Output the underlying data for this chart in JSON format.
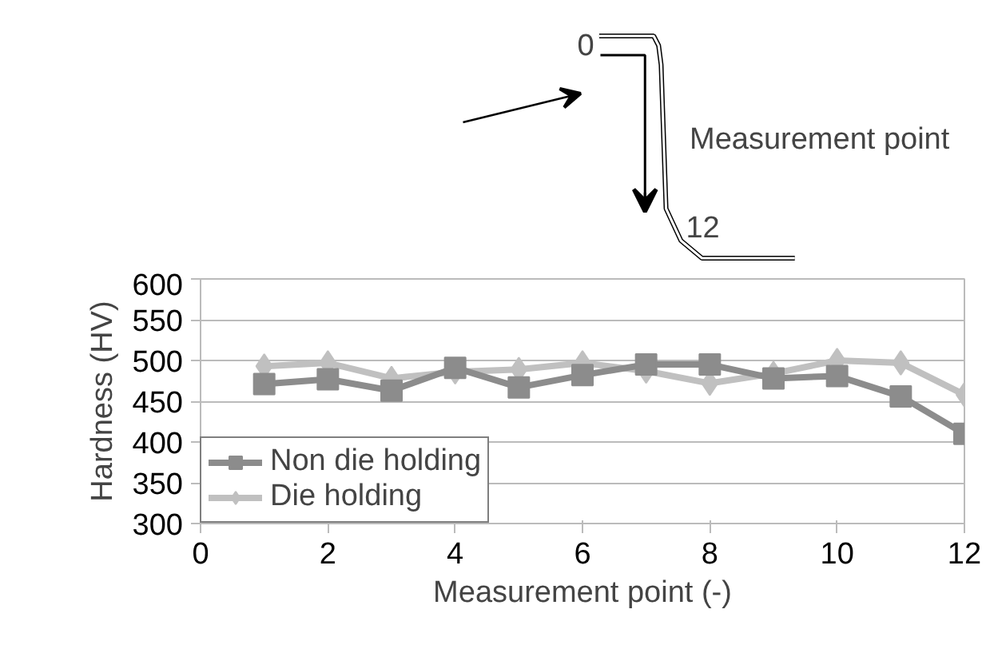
{
  "chart_data": {
    "type": "line",
    "xlabel": "Measurement point (-)",
    "ylabel": "Hardness (HV)",
    "x": [
      1,
      2,
      3,
      4,
      5,
      6,
      7,
      8,
      9,
      10,
      11,
      12
    ],
    "series": [
      {
        "name": "Non die holding",
        "color": "#8c8c8c",
        "marker": "square",
        "values": [
          471,
          477,
          463,
          491,
          467,
          482,
          495,
          495,
          478,
          481,
          456,
          410
        ]
      },
      {
        "name": "Die holding",
        "color": "#c0c0c0",
        "marker": "diamond",
        "values": [
          493,
          497,
          478,
          486,
          489,
          497,
          487,
          472,
          484,
          500,
          497,
          458
        ]
      }
    ],
    "xlim": [
      0,
      12
    ],
    "xticks": [
      0,
      2,
      4,
      6,
      8,
      10,
      12
    ],
    "ylim": [
      300,
      600
    ],
    "yticks": [
      300,
      350,
      400,
      450,
      500,
      550,
      600
    ],
    "grid": "y",
    "legend": "bottom left",
    "annotations": [
      "0",
      "12",
      "Measurement point"
    ]
  }
}
